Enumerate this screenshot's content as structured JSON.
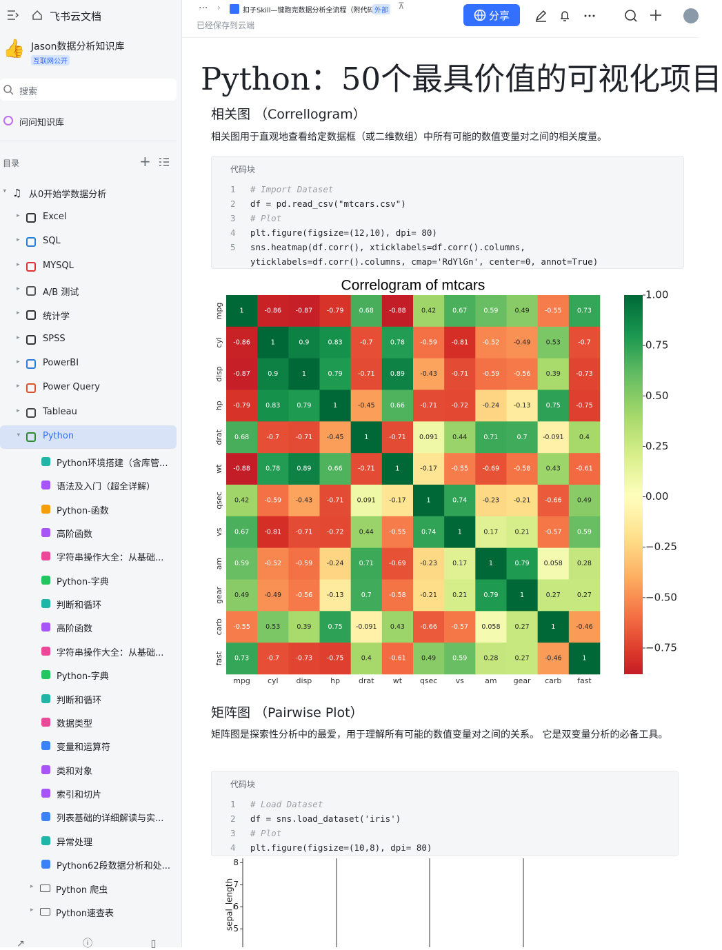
{
  "sidebar": {
    "app_name": "飞书云文档",
    "workspace": "Jason数据分析知识库",
    "workspace_tag": "互联网公开",
    "search": "搜索",
    "ask": "问问知识库",
    "toc": "目录",
    "tree": {
      "root": "从0开始学数据分析",
      "sections": [
        "Excel",
        "SQL",
        "MYSQL",
        "A/B 测试",
        "统计学",
        "SPSS",
        "PowerBI",
        "Power Query",
        "Tableau",
        "Python"
      ],
      "python_children": [
        "Python环境搭建（含库管...",
        "语法及入门（超全详解）",
        "Python-函数",
        "高阶函数",
        "字符串操作大全：从基础...",
        "Python-字典",
        "判断和循环",
        "高阶函数",
        "字符串操作大全：从基础...",
        "Python-字典",
        "判断和循环",
        "数据类型",
        "变量和运算符",
        "类和对象",
        "索引和切片",
        "列表基础的详细解读与实...",
        "异常处理",
        "Python62段数据分析和处..."
      ],
      "python_folders": [
        "Python 爬虫",
        "Python速查表"
      ]
    }
  },
  "topbar": {
    "breadcrumb": "扣子Skill—键跑完数据分析全流程（附代码）",
    "tag": "外部",
    "saved": "已经保存到云端",
    "share": "分享"
  },
  "document": {
    "title": "Python：50个最具价值的可视化项目",
    "sections": [
      {
        "heading": "相关图 （Correllogram）",
        "text": "相关图用于直观地查看给定数据框（或二维数组）中所有可能的数值变量对之间的相关度量。",
        "code_label": "代码块",
        "code": [
          {
            "n": "1",
            "code": "# Import Dataset"
          },
          {
            "n": "2",
            "code": "df = pd.read_csv(\"mtcars.csv\")"
          },
          {
            "n": "3",
            "code": "# Plot"
          },
          {
            "n": "4",
            "code": "plt.figure(figsize=(12,10), dpi= 80)"
          },
          {
            "n": "5",
            "code": "sns.heatmap(df.corr(), xticklabels=df.corr().columns,"
          },
          {
            "n": null,
            "code": "yticklabels=df.corr().columns, cmap='RdYlGn', center=0, annot=True)"
          }
        ]
      },
      {
        "heading": "矩阵图 （Pairwise Plot）",
        "text": "矩阵图是探索性分析中的最爱，用于理解所有可能的数值变量对之间的关系。 它是双变量分析的必备工具。",
        "code_label": "代码块",
        "code": [
          {
            "n": "1",
            "code": "# Load Dataset"
          },
          {
            "n": "2",
            "code": "df = sns.load_dataset('iris')"
          },
          {
            "n": "3",
            "code": "# Plot"
          },
          {
            "n": "4",
            "code": "plt.figure(figsize=(10,8), dpi= 80)"
          }
        ]
      }
    ]
  },
  "chart_data": [
    {
      "type": "heatmap",
      "title": "Correlogram of mtcars",
      "x_categories": [
        "mpg",
        "cyl",
        "disp",
        "hp",
        "drat",
        "wt",
        "qsec",
        "vs",
        "am",
        "gear",
        "carb",
        "fast"
      ],
      "y_categories": [
        "mpg",
        "cyl",
        "disp",
        "hp",
        "drat",
        "wt",
        "qsec",
        "vs",
        "am",
        "gear",
        "carb",
        "fast"
      ],
      "values": [
        [
          1,
          -0.86,
          -0.87,
          -0.79,
          0.68,
          -0.88,
          0.42,
          0.67,
          0.59,
          0.49,
          -0.55,
          0.73
        ],
        [
          -0.86,
          1,
          0.9,
          0.83,
          -0.7,
          0.78,
          -0.59,
          -0.81,
          -0.52,
          -0.49,
          0.53,
          -0.7
        ],
        [
          -0.87,
          0.9,
          1,
          0.79,
          -0.71,
          0.89,
          -0.43,
          -0.71,
          -0.59,
          -0.56,
          0.39,
          -0.73
        ],
        [
          -0.79,
          0.83,
          0.79,
          1,
          -0.45,
          0.66,
          -0.71,
          -0.72,
          -0.24,
          -0.13,
          0.75,
          -0.75
        ],
        [
          0.68,
          -0.7,
          -0.71,
          -0.45,
          1,
          -0.71,
          0.091,
          0.44,
          0.71,
          0.7,
          -0.091,
          0.4
        ],
        [
          -0.88,
          0.78,
          0.89,
          0.66,
          -0.71,
          1,
          -0.17,
          -0.55,
          -0.69,
          -0.58,
          0.43,
          -0.61
        ],
        [
          0.42,
          -0.59,
          -0.43,
          -0.71,
          0.091,
          -0.17,
          1,
          0.74,
          -0.23,
          -0.21,
          -0.66,
          0.49
        ],
        [
          0.67,
          -0.81,
          -0.71,
          -0.72,
          0.44,
          -0.55,
          0.74,
          1,
          0.17,
          0.21,
          -0.57,
          0.59
        ],
        [
          0.59,
          -0.52,
          -0.59,
          -0.24,
          0.71,
          -0.69,
          -0.23,
          0.17,
          1,
          0.79,
          0.058,
          0.28
        ],
        [
          0.49,
          -0.49,
          -0.56,
          -0.13,
          0.7,
          -0.58,
          -0.21,
          0.21,
          0.79,
          1,
          0.27,
          0.27
        ],
        [
          -0.55,
          0.53,
          0.39,
          0.75,
          -0.091,
          0.43,
          -0.66,
          -0.57,
          0.058,
          0.27,
          1,
          -0.46
        ],
        [
          0.73,
          -0.7,
          -0.73,
          -0.75,
          0.4,
          -0.61,
          0.49,
          0.59,
          0.28,
          0.27,
          -0.46,
          1
        ]
      ],
      "zlim": [
        -0.88,
        1
      ],
      "zticks": [
        {
          "value": 1,
          "label": "1.00"
        },
        0.75,
        {
          "value": 0.5,
          "label": "0.50"
        },
        0.25,
        {
          "value": 0,
          "label": "0.00"
        },
        {
          "value": -0.25,
          "label": "−0.25"
        },
        {
          "value": -0.5,
          "label": "−0.50"
        },
        {
          "value": -0.75,
          "label": "−0.75"
        }
      ],
      "colors": [
        "#a50026",
        "#d73027",
        "#f46d43",
        "#fdae61",
        "#fee08b",
        "#ffffbf",
        "#d9ef8b",
        "#a6d96a",
        "#66bd63",
        "#1a9850",
        "#006837"
      ]
    },
    {
      "type": "pairplot",
      "ylabel": "sepal_length",
      "ylim": [
        4.2,
        8.2
      ],
      "yticks": [
        5,
        6,
        7,
        8
      ]
    }
  ]
}
